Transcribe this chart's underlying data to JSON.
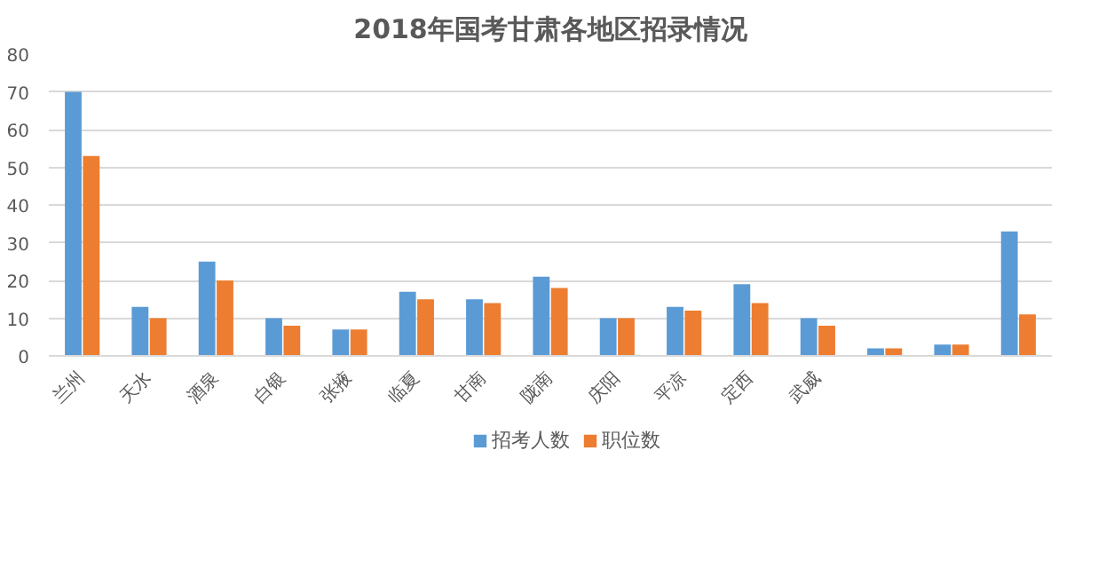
{
  "chart_data": {
    "type": "bar",
    "title": "2018年国考甘肃各地区招录情况",
    "categories": [
      "兰州",
      "天水",
      "酒泉",
      "白银",
      "张掖",
      "临夏",
      "甘南",
      "陇南",
      "庆阳",
      "平凉",
      "定西",
      "武威",
      null,
      null,
      null
    ],
    "series": [
      {
        "name": "招考人数",
        "color": "#5b9bd5",
        "values": [
          70,
          13,
          25,
          10,
          7,
          17,
          15,
          21,
          10,
          13,
          19,
          10,
          2,
          3,
          33
        ]
      },
      {
        "name": "职位数",
        "color": "#ed7d31",
        "values": [
          53,
          10,
          20,
          8,
          7,
          15,
          14,
          18,
          10,
          12,
          14,
          8,
          2,
          3,
          11
        ]
      }
    ],
    "ylim": [
      0,
      80
    ],
    "yticks": [
      0,
      10,
      20,
      30,
      40,
      50,
      60,
      70,
      80
    ],
    "grid": "y",
    "legend": "bottom"
  }
}
